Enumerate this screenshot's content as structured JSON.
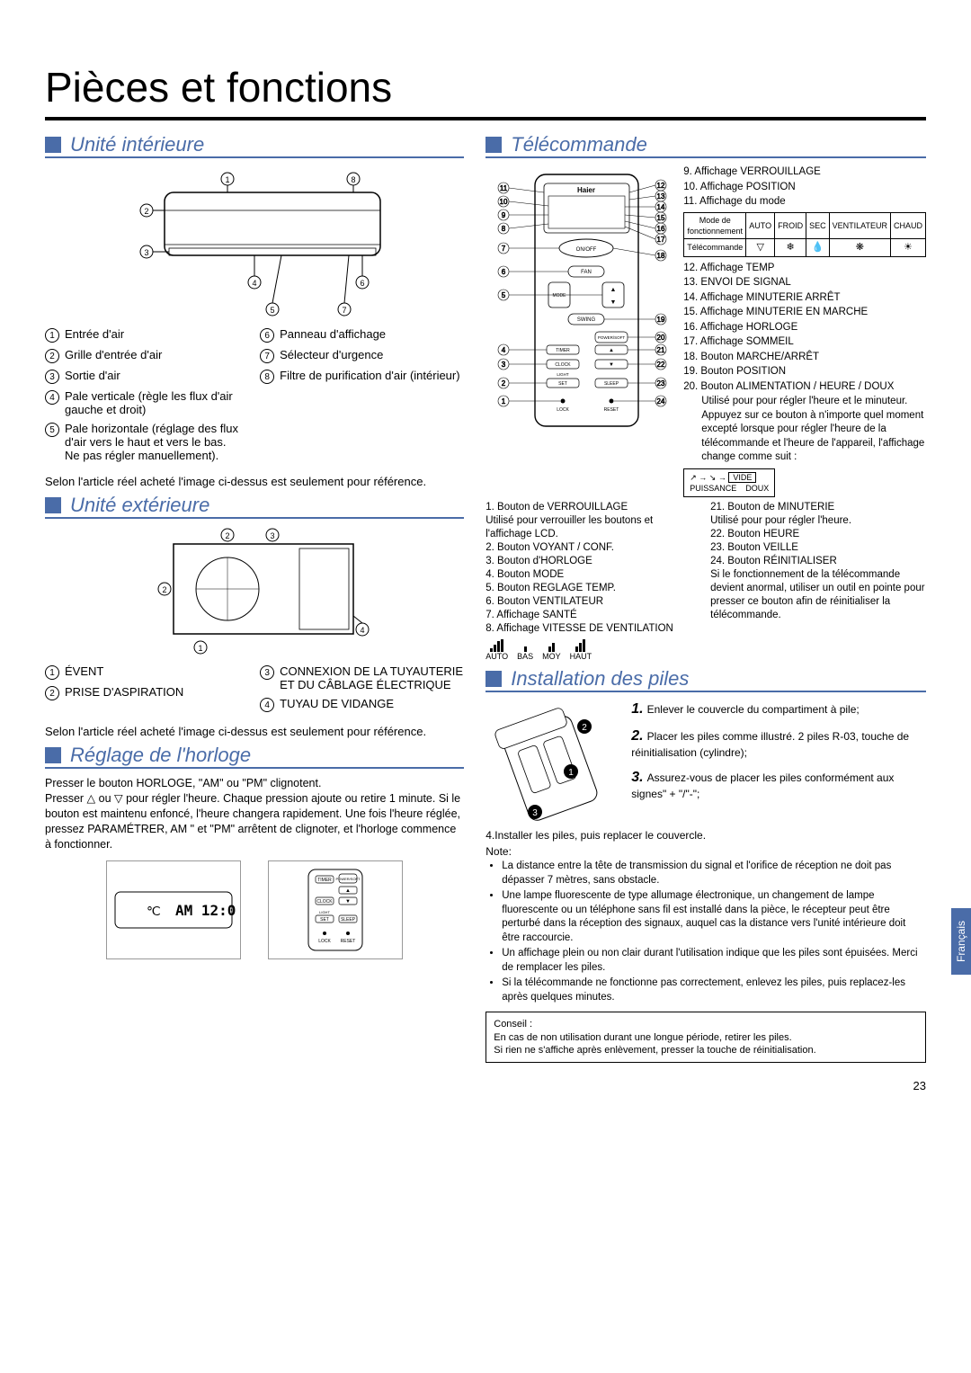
{
  "page_title": "Pièces et fonctions",
  "lang_tab": "Français",
  "page_number": "23",
  "colors": {
    "accent": "#4a6ca8"
  },
  "indoor": {
    "heading": "Unité intérieure",
    "callouts_left": [
      {
        "n": "1",
        "t": "Entrée d'air"
      },
      {
        "n": "2",
        "t": "Grille d'entrée d'air"
      },
      {
        "n": "3",
        "t": "Sortie d'air"
      },
      {
        "n": "4",
        "t": "Pale verticale (règle les flux d'air gauche et droit)"
      },
      {
        "n": "5",
        "t": "Pale horizontale (réglage des flux d'air vers le haut et vers le bas.\nNe pas régler manuellement)."
      }
    ],
    "callouts_right": [
      {
        "n": "6",
        "t": "Panneau d'affichage"
      },
      {
        "n": "7",
        "t": "Sélecteur d'urgence"
      },
      {
        "n": "8",
        "t": "Filtre de purification d'air (intérieur)"
      }
    ],
    "note": "Selon l'article réel acheté l'image ci-dessus est seulement pour référence."
  },
  "outdoor": {
    "heading": "Unité extérieure",
    "labels_left": [
      {
        "n": "1",
        "t": "ÉVENT"
      },
      {
        "n": "2",
        "t": "PRISE D'ASPIRATION"
      }
    ],
    "labels_right": [
      {
        "n": "3",
        "t": "CONNEXION DE LA TUYAUTERIE ET DU CÂBLAGE ÉLECTRIQUE"
      },
      {
        "n": "4",
        "t": "TUYAU DE VIDANGE"
      }
    ],
    "note": "Selon l'article réel acheté l'image ci-dessus est seulement pour référence."
  },
  "clock": {
    "heading": "Réglage de l'horloge",
    "text": "Presser le bouton HORLOGE, \"AM\" ou \"PM\" clignotent.\nPresser △ ou ▽ pour régler l'heure. Chaque pression ajoute ou retire 1 minute. Si le bouton est maintenu enfoncé, l'heure changera rapidement. Une fois l'heure réglée, pressez PARAMÉTRER, AM \" et \"PM\" arrêtent de clignoter, et l'horloge commence à fonctionner."
  },
  "remote": {
    "heading": "Télécommande",
    "right_top": [
      "9. Affichage VERROUILLAGE",
      "10. Affichage POSITION",
      "11. Affichage du mode"
    ],
    "mode_table": {
      "row1": [
        "Mode de fonctionnement",
        "AUTO",
        "FROID",
        "SEC",
        "VENTILATEUR",
        "CHAUD"
      ],
      "row2_label": "Télécommande",
      "icons": [
        "▽",
        "❄",
        "💧",
        "❋",
        "☀"
      ]
    },
    "right_mid": [
      "12. Affichage TEMP",
      "13. ENVOI DE SIGNAL",
      "14. Affichage MINUTERIE ARRÊT",
      "15. Affichage MINUTERIE EN MARCHE",
      "16. Affichage HORLOGE",
      "17. Affichage SOMMEIL",
      "18. Bouton MARCHE/ARRÊT",
      "19. Bouton POSITION",
      "20. Bouton ALIMENTATION / HEURE / DOUX"
    ],
    "right_mid_desc": "Utilisé pour pour régler l'heure et le minuteur. Appuyez sur ce bouton à n'importe quel moment excepté lorsque pour régler l'heure de la télécommande et l'heure de l'appareil, l'affichage change comme suit :",
    "power_seq": [
      "PUISSANCE",
      "DOUX",
      "VIDE"
    ],
    "left_bottom": [
      "1. Bouton de VERROUILLAGE\n    Utilisé pour verrouiller les boutons et l'affichage LCD.",
      "2. Bouton VOYANT / CONF.",
      "3. Bouton d'HORLOGE",
      "4. Bouton MODE",
      "5. Bouton REGLAGE TEMP.",
      "6. Bouton VENTILATEUR",
      "7. Affichage SANTÉ",
      "8. Affichage VITESSE DE VENTILATION"
    ],
    "fan_labels": [
      "AUTO",
      "BAS",
      "MOY",
      "HAUT"
    ],
    "right_bottom": [
      "21. Bouton de MINUTERIE\n    Utilisé pour pour régler l'heure.",
      "22. Bouton HEURE",
      "23. Bouton VEILLE",
      "24. Bouton RÉINITIALISER\n    Si le fonctionnement de la télécommande devient anormal, utiliser un outil en pointe pour presser ce bouton afin de réinitialiser la télécommande."
    ]
  },
  "battery": {
    "heading": "Installation des piles",
    "steps": [
      {
        "n": "1.",
        "t": "Enlever le couvercle du compartiment à pile;"
      },
      {
        "n": "2.",
        "t": "Placer les piles comme illustré. 2 piles R-03, touche de réinitialisation (cylindre);"
      },
      {
        "n": "3.",
        "t": "Assurez-vous de placer les piles conformément aux signes\" + \"/\"-\";"
      }
    ],
    "step4": "Installer les piles, puis replacer le couvercle.",
    "note_label": "Note:",
    "notes": [
      "La distance entre la tête de transmission du signal et l'orifice de réception ne doit pas dépasser 7 mètres, sans obstacle.",
      "Une lampe fluorescente de type allumage électronique, un changement de lampe fluorescente ou un téléphone sans fil est installé dans la pièce, le récepteur peut être perturbé dans la réception des signaux, auquel cas la distance vers l'unité intérieure doit être raccourcie.",
      "Un affichage plein ou non clair durant l'utilisation indique que les piles sont épuisées.  Merci de remplacer les piles.",
      "Si la télécommande ne fonctionne pas correctement, enlevez les piles, puis replacez-les après quelques minutes."
    ],
    "tip_label": "Conseil :",
    "tips": [
      "En cas de non utilisation durant une longue période, retirer les piles.",
      "Si rien ne s'affiche après enlèvement, presser la touche de réinitialisation."
    ]
  }
}
